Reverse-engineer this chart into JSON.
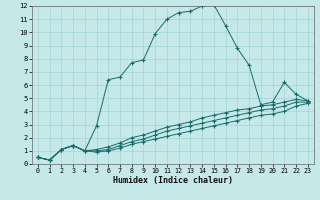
{
  "xlabel": "Humidex (Indice chaleur)",
  "bg_color": "#c5e8e8",
  "grid_color": "#9dcfcf",
  "line_color": "#1a6b6b",
  "xlim": [
    -0.5,
    23.5
  ],
  "ylim": [
    0,
    12
  ],
  "xticks": [
    0,
    1,
    2,
    3,
    4,
    5,
    6,
    7,
    8,
    9,
    10,
    11,
    12,
    13,
    14,
    15,
    16,
    17,
    18,
    19,
    20,
    21,
    22,
    23
  ],
  "yticks": [
    0,
    1,
    2,
    3,
    4,
    5,
    6,
    7,
    8,
    9,
    10,
    11,
    12
  ],
  "s1_x": [
    0,
    1,
    2,
    3,
    4,
    5,
    6,
    7,
    8,
    9,
    10,
    11,
    12,
    13,
    14,
    15,
    16,
    17,
    18,
    19,
    20,
    21,
    22,
    23
  ],
  "s1_y": [
    0.5,
    0.3,
    1.1,
    1.4,
    1.0,
    2.9,
    6.4,
    6.6,
    7.7,
    7.9,
    9.9,
    11.0,
    11.5,
    11.6,
    12.0,
    12.1,
    10.5,
    8.8,
    7.5,
    4.5,
    4.7,
    6.2,
    5.3,
    4.8
  ],
  "s2_x": [
    0,
    1,
    2,
    3,
    4,
    5,
    6,
    7,
    8,
    9,
    10,
    11,
    12,
    13,
    14,
    15,
    16,
    17,
    18,
    19,
    20,
    21,
    22,
    23
  ],
  "s2_y": [
    0.5,
    0.3,
    1.1,
    1.4,
    1.0,
    1.1,
    1.3,
    1.6,
    2.0,
    2.2,
    2.5,
    2.8,
    3.0,
    3.2,
    3.5,
    3.7,
    3.9,
    4.1,
    4.2,
    4.4,
    4.5,
    4.7,
    4.9,
    4.8
  ],
  "s3_x": [
    0,
    1,
    2,
    3,
    4,
    5,
    6,
    7,
    8,
    9,
    10,
    11,
    12,
    13,
    14,
    15,
    16,
    17,
    18,
    19,
    20,
    21,
    22,
    23
  ],
  "s3_y": [
    0.5,
    0.3,
    1.1,
    1.4,
    1.0,
    1.0,
    1.1,
    1.4,
    1.7,
    1.9,
    2.2,
    2.5,
    2.7,
    2.9,
    3.1,
    3.3,
    3.5,
    3.7,
    3.9,
    4.1,
    4.2,
    4.4,
    4.7,
    4.7
  ],
  "s4_x": [
    0,
    1,
    2,
    3,
    4,
    5,
    6,
    7,
    8,
    9,
    10,
    11,
    12,
    13,
    14,
    15,
    16,
    17,
    18,
    19,
    20,
    21,
    22,
    23
  ],
  "s4_y": [
    0.5,
    0.3,
    1.1,
    1.4,
    1.0,
    0.9,
    1.0,
    1.2,
    1.5,
    1.7,
    1.9,
    2.1,
    2.3,
    2.5,
    2.7,
    2.9,
    3.1,
    3.3,
    3.5,
    3.7,
    3.8,
    4.0,
    4.4,
    4.6
  ]
}
